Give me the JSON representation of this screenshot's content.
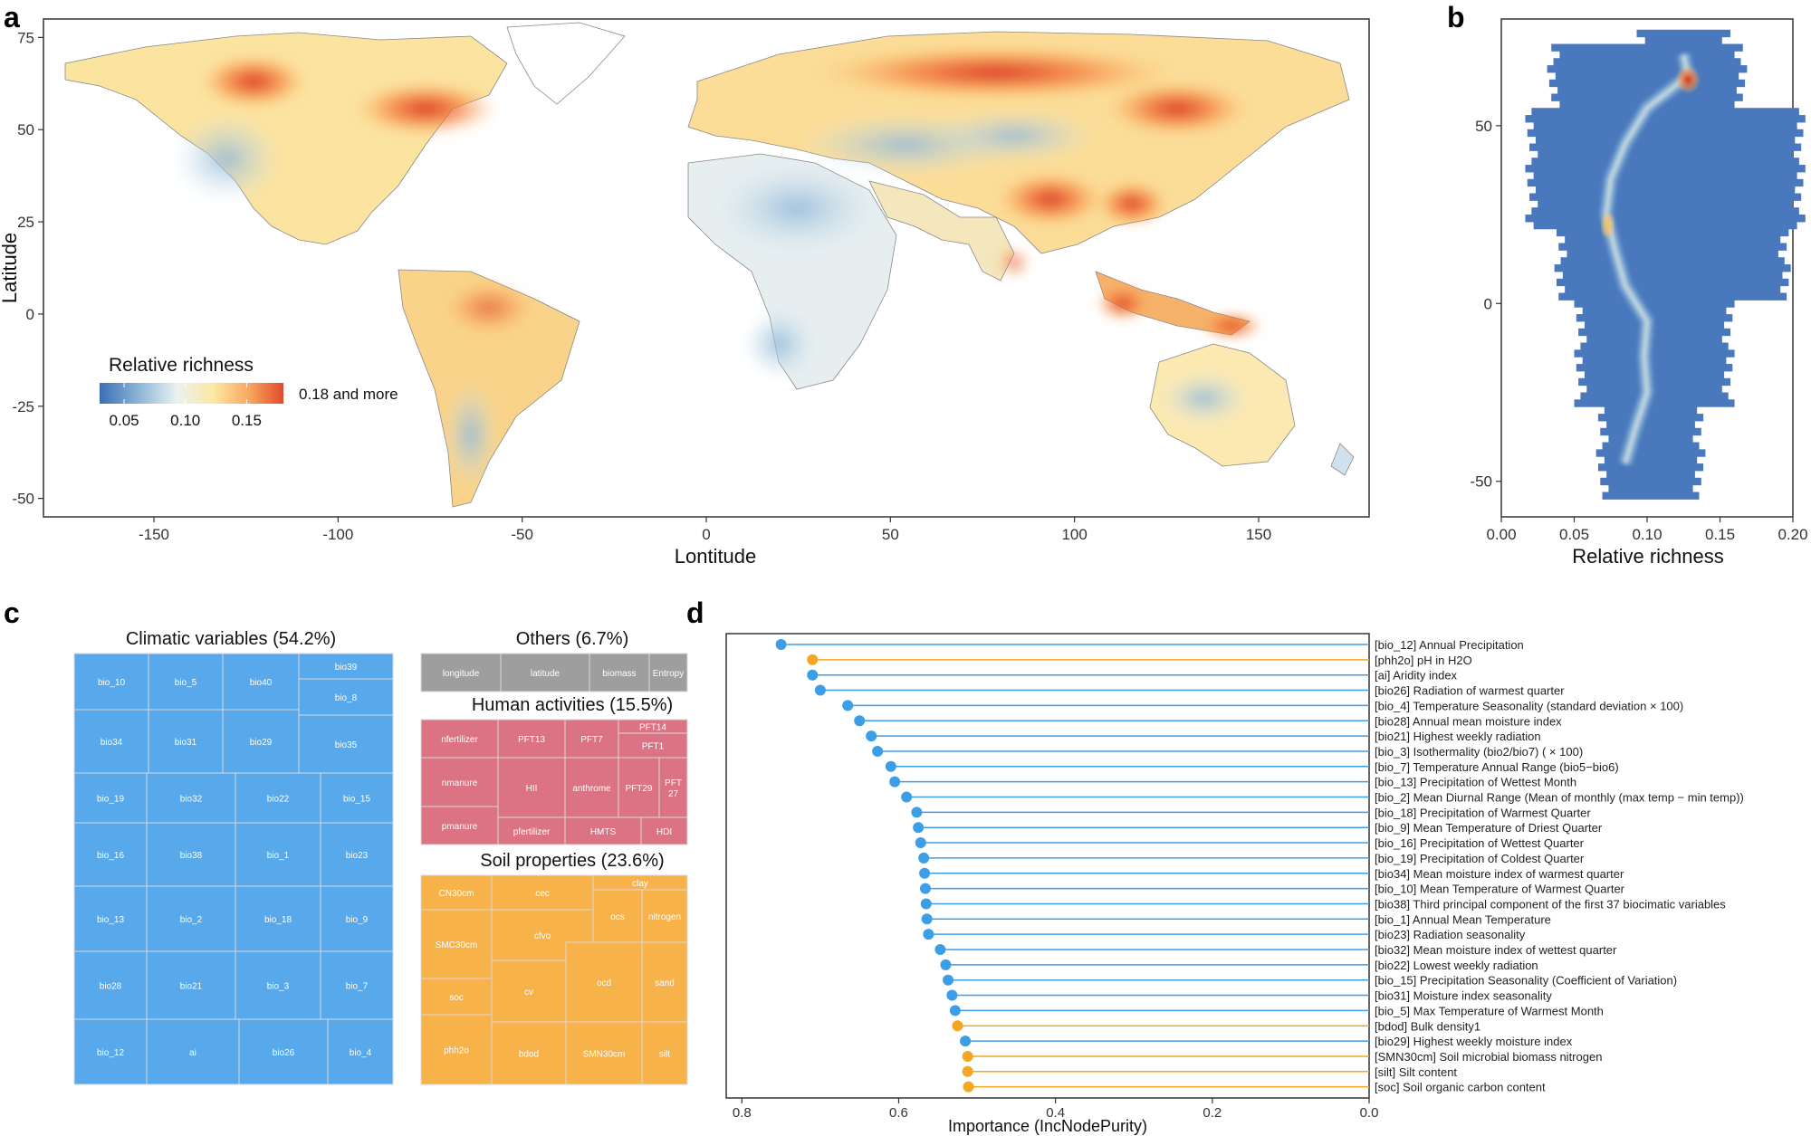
{
  "chart_data": [
    {
      "panel": "a",
      "type": "heatmap",
      "description_type": "map",
      "xlabel": "Lontitude",
      "ylabel": "Latitude",
      "xlim": [
        -180,
        180
      ],
      "ylim": [
        -55,
        80
      ],
      "xticks": [
        -150,
        -100,
        -50,
        0,
        50,
        100,
        150
      ],
      "yticks": [
        -50,
        -25,
        0,
        25,
        50,
        75
      ],
      "legend": {
        "title": "Relative richness",
        "ticks": [
          "0.05",
          "0.10",
          "0.15"
        ],
        "max_label": "0.18 and more",
        "colors": [
          "#3a6fb5",
          "#8fb7d8",
          "#eaf2f0",
          "#fde7a3",
          "#f7a45c",
          "#e14a2c"
        ],
        "position": "bottom-left"
      }
    },
    {
      "panel": "b",
      "type": "heatmap",
      "xlabel": "Relative richness",
      "ylabel": "",
      "xlim": [
        0,
        0.2
      ],
      "ylim": [
        -60,
        80
      ],
      "xticks": [
        "0.00",
        "0.05",
        "0.10",
        "0.15",
        "0.20"
      ],
      "yticks": [
        -50,
        0,
        50
      ],
      "ridge": [
        {
          "lat": 70,
          "x": 0.125
        },
        {
          "lat": 64,
          "x": 0.128
        },
        {
          "lat": 55,
          "x": 0.1
        },
        {
          "lat": 45,
          "x": 0.085
        },
        {
          "lat": 35,
          "x": 0.075
        },
        {
          "lat": 25,
          "x": 0.072
        },
        {
          "lat": 15,
          "x": 0.078
        },
        {
          "lat": 5,
          "x": 0.085
        },
        {
          "lat": -5,
          "x": 0.1
        },
        {
          "lat": -15,
          "x": 0.098
        },
        {
          "lat": -25,
          "x": 0.1
        },
        {
          "lat": -35,
          "x": 0.092
        },
        {
          "lat": -45,
          "x": 0.085
        }
      ],
      "background_color": "#4a78bd"
    },
    {
      "panel": "c",
      "type": "treemap",
      "groups": [
        {
          "name": "Climatic variables (54.2%)",
          "color": "#58a8ec",
          "labels": [
            "bio_10",
            "bio_5",
            "bio40",
            "bio39",
            "bio_8",
            "bio34",
            "bio31",
            "bio29",
            "bio35",
            "bio_19",
            "bio32",
            "bio22",
            "bio_15",
            "bio_16",
            "bio38",
            "bio_1",
            "bio23",
            "bio_13",
            "bio_2",
            "bio_18",
            "bio_9",
            "bio28",
            "bio21",
            "bio_3",
            "bio_7",
            "bio_12",
            "ai",
            "bio26",
            "bio_4"
          ]
        },
        {
          "name": "Others (6.7%)",
          "color": "#9e9e9e",
          "labels": [
            "longitude",
            "latitude",
            "biomass",
            "Entropy"
          ]
        },
        {
          "name": "Human activities (15.5%)",
          "color": "#dc7384",
          "labels": [
            "nfertilizer",
            "PFT13",
            "PFT7",
            "PFT14",
            "PFT1",
            "nmanure",
            "HII",
            "anthrome",
            "PFT29",
            "PFT 27",
            "pmanure",
            "pfertilizer",
            "HMTS",
            "HDI"
          ]
        },
        {
          "name": "Soil properties (23.6%)",
          "color": "#f7b24a",
          "labels": [
            "CN30cm",
            "cec",
            "clay",
            "ocs",
            "nitrogen",
            "SMC30cm",
            "cfvo",
            "soc",
            "cv",
            "ocd",
            "sand",
            "phh2o",
            "bdod",
            "SMN30cm",
            "silt"
          ]
        }
      ]
    },
    {
      "panel": "d",
      "type": "lollipop",
      "xlabel": "Importance (IncNodePurity)",
      "xlim": [
        0.82,
        0.0
      ],
      "xticks": [
        "0.8",
        "0.6",
        "0.4",
        "0.2",
        "0.0"
      ],
      "colors": {
        "climate": "#3d9ee8",
        "soil": "#f4a623"
      },
      "variables": [
        {
          "label": "[bio_12] Annual Precipitation",
          "value": 0.75,
          "group": "climate"
        },
        {
          "label": "[phh2o] pH in H2O",
          "value": 0.71,
          "group": "soil"
        },
        {
          "label": "[ai] Aridity index",
          "value": 0.71,
          "group": "climate"
        },
        {
          "label": "[bio26] Radiation of warmest quarter",
          "value": 0.7,
          "group": "climate"
        },
        {
          "label": "[bio_4] Temperature Seasonality (standard deviation × 100)",
          "value": 0.665,
          "group": "climate"
        },
        {
          "label": "[bio28] Annual mean moisture index",
          "value": 0.65,
          "group": "climate"
        },
        {
          "label": "[bio21] Highest weekly radiation",
          "value": 0.635,
          "group": "climate"
        },
        {
          "label": "[bio_3] Isothermality (bio2/bio7) ( × 100)",
          "value": 0.627,
          "group": "climate"
        },
        {
          "label": "[bio_7] Temperature Annual Range (bio5−bio6)",
          "value": 0.61,
          "group": "climate"
        },
        {
          "label": "[bio_13] Precipitation of Wettest Month",
          "value": 0.605,
          "group": "climate"
        },
        {
          "label": "[bio_2] Mean Diurnal Range (Mean of monthly (max temp − min temp))",
          "value": 0.59,
          "group": "climate"
        },
        {
          "label": "[bio_18] Precipitation of Warmest Quarter",
          "value": 0.577,
          "group": "climate"
        },
        {
          "label": "[bio_9] Mean Temperature of Driest Quarter",
          "value": 0.575,
          "group": "climate"
        },
        {
          "label": "[bio_16] Precipitation of Wettest Quarter",
          "value": 0.572,
          "group": "climate"
        },
        {
          "label": "[bio_19] Precipitation of Coldest Quarter",
          "value": 0.568,
          "group": "climate"
        },
        {
          "label": "[bio34] Mean moisture index of warmest quarter",
          "value": 0.567,
          "group": "climate"
        },
        {
          "label": "[bio_10] Mean Temperature of Warmest Quarter",
          "value": 0.566,
          "group": "climate"
        },
        {
          "label": "[bio38] Third principal component of the first 37 biocimatic variables",
          "value": 0.565,
          "group": "climate"
        },
        {
          "label": "[bio_1] Annual Mean Temperature",
          "value": 0.564,
          "group": "climate"
        },
        {
          "label": "[bio23] Radiation seasonality",
          "value": 0.562,
          "group": "climate"
        },
        {
          "label": "[bio32] Mean moisture index of wettest quarter",
          "value": 0.547,
          "group": "climate"
        },
        {
          "label": "[bio22] Lowest weekly radiation",
          "value": 0.54,
          "group": "climate"
        },
        {
          "label": "[bio_15] Precipitation Seasonality (Coefficient of Variation)",
          "value": 0.537,
          "group": "climate"
        },
        {
          "label": "[bio31] Moisture index seasonality",
          "value": 0.532,
          "group": "climate"
        },
        {
          "label": "[bio_5] Max Temperature of Warmest Month",
          "value": 0.528,
          "group": "climate"
        },
        {
          "label": "[bdod] Bulk density1",
          "value": 0.525,
          "group": "soil"
        },
        {
          "label": "[bio29] Highest weekly moisture index",
          "value": 0.515,
          "group": "climate"
        },
        {
          "label": "[SMN30cm] Soil microbial biomass nitrogen",
          "value": 0.512,
          "group": "soil"
        },
        {
          "label": "[silt] Silt content",
          "value": 0.512,
          "group": "soil"
        },
        {
          "label": "[soc] Soil organic carbon content",
          "value": 0.511,
          "group": "soil"
        }
      ]
    }
  ]
}
